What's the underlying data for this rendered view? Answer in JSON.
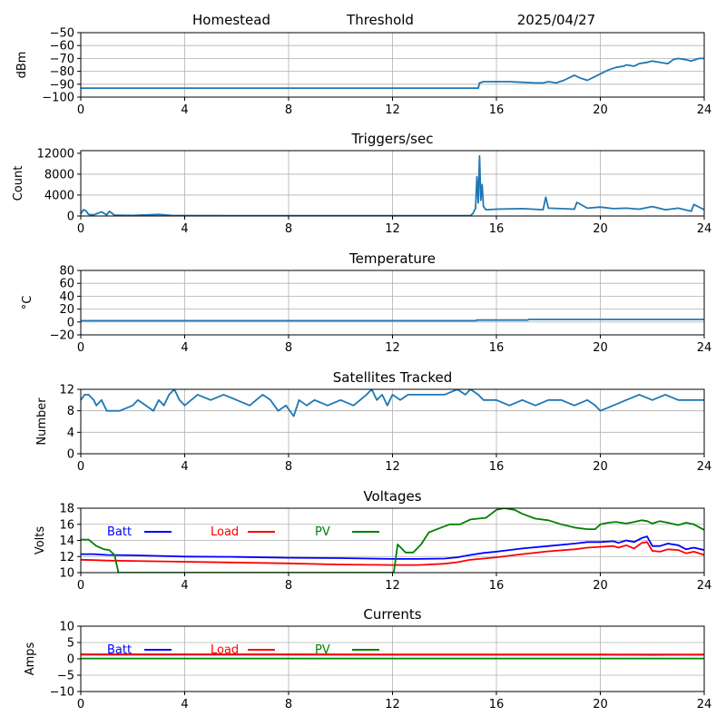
{
  "header": {
    "site": "Homestead",
    "mode": "Threshold",
    "date": "2025/04/27"
  },
  "colors": {
    "default_series": "#1f77b4",
    "batt": "#0000ff",
    "load": "#ff0000",
    "pv": "#008000",
    "grid": "#b0b0b0"
  },
  "chart_data": [
    {
      "id": "signal",
      "type": "line",
      "title": "",
      "ylabel": "dBm",
      "xlim": [
        0,
        24
      ],
      "ylim": [
        -100,
        -50
      ],
      "xticks": [
        0,
        4,
        8,
        12,
        16,
        20,
        24
      ],
      "yticks": [
        -100,
        -90,
        -80,
        -70,
        -60,
        -50
      ],
      "grid": true,
      "series": [
        {
          "color": "#1f77b4",
          "x": [
            0,
            15.3,
            15.35,
            15.5,
            16.0,
            16.5,
            17.0,
            17.5,
            17.8,
            18.0,
            18.3,
            18.6,
            18.8,
            19.0,
            19.2,
            19.5,
            19.8,
            20.0,
            20.3,
            20.6,
            20.9,
            21.0,
            21.3,
            21.5,
            21.8,
            22.0,
            22.3,
            22.6,
            22.8,
            23.0,
            23.3,
            23.5,
            23.8,
            24.0
          ],
          "y": [
            -93,
            -93,
            -89,
            -88,
            -88,
            -88,
            -88.5,
            -89,
            -89,
            -88,
            -89,
            -87,
            -85,
            -83,
            -85,
            -87,
            -84,
            -82,
            -79,
            -77,
            -76,
            -75,
            -76,
            -74,
            -73,
            -72,
            -73,
            -74,
            -71,
            -70,
            -71,
            -72,
            -70,
            -70
          ]
        }
      ]
    },
    {
      "id": "triggers",
      "type": "line",
      "title": "Triggers/sec",
      "ylabel": "Count",
      "xlim": [
        0,
        24
      ],
      "ylim": [
        0,
        12500
      ],
      "xticks": [
        0,
        4,
        8,
        12,
        16,
        20,
        24
      ],
      "yticks": [
        0,
        4000,
        8000,
        12000
      ],
      "grid": true,
      "series": [
        {
          "color": "#1f77b4",
          "x": [
            0,
            0.1,
            0.2,
            0.3,
            0.5,
            0.8,
            1.0,
            1.1,
            1.3,
            2.0,
            3.0,
            3.5,
            4.0,
            8.0,
            12.0,
            15.0,
            15.1,
            15.2,
            15.25,
            15.3,
            15.35,
            15.4,
            15.45,
            15.5,
            15.6,
            16.0,
            17.0,
            17.8,
            17.9,
            18.0,
            18.5,
            19.0,
            19.1,
            19.5,
            20.0,
            20.5,
            21.0,
            21.5,
            22.0,
            22.5,
            23.0,
            23.5,
            23.6,
            24.0
          ],
          "y": [
            400,
            1200,
            1000,
            300,
            200,
            800,
            200,
            900,
            150,
            100,
            300,
            100,
            80,
            50,
            50,
            60,
            500,
            1500,
            7500,
            2500,
            11500,
            3000,
            6000,
            1800,
            1200,
            1300,
            1400,
            1200,
            3600,
            1500,
            1400,
            1300,
            2600,
            1500,
            1700,
            1400,
            1500,
            1300,
            1800,
            1200,
            1500,
            900,
            2200,
            1200
          ]
        }
      ]
    },
    {
      "id": "temperature",
      "type": "line",
      "title": "Temperature",
      "ylabel": "°C",
      "xlim": [
        0,
        24
      ],
      "ylim": [
        -20,
        80
      ],
      "xticks": [
        0,
        4,
        8,
        12,
        16,
        20,
        24
      ],
      "yticks": [
        -20,
        0,
        20,
        40,
        60,
        80
      ],
      "grid": true,
      "series": [
        {
          "color": "#1f77b4",
          "x": [
            0,
            15.2,
            15.25,
            17.2,
            17.25,
            24
          ],
          "y": [
            2,
            2,
            3,
            3,
            4,
            4
          ]
        }
      ]
    },
    {
      "id": "satellites",
      "type": "line",
      "title": "Satellites Tracked",
      "ylabel": "Number",
      "xlim": [
        0,
        24
      ],
      "ylim": [
        0,
        12
      ],
      "xticks": [
        0,
        4,
        8,
        12,
        16,
        20,
        24
      ],
      "yticks": [
        0,
        4,
        8,
        12
      ],
      "grid": true,
      "series": [
        {
          "color": "#1f77b4",
          "x": [
            0,
            0.15,
            0.3,
            0.5,
            0.6,
            0.8,
            1.0,
            1.5,
            2.0,
            2.2,
            2.5,
            2.8,
            3.0,
            3.2,
            3.4,
            3.6,
            3.8,
            4.0,
            4.5,
            5.0,
            5.5,
            6.0,
            6.5,
            7.0,
            7.3,
            7.6,
            7.9,
            8.2,
            8.4,
            8.7,
            9.0,
            9.5,
            10.0,
            10.5,
            11.0,
            11.2,
            11.4,
            11.6,
            11.8,
            12.0,
            12.3,
            12.6,
            13.0,
            14.0,
            14.5,
            14.8,
            15.0,
            15.3,
            15.5,
            16.0,
            16.5,
            17.0,
            17.5,
            18.0,
            18.5,
            19.0,
            19.5,
            19.8,
            20.0,
            20.5,
            21.0,
            21.5,
            22.0,
            22.5,
            23.0,
            23.5,
            24.0
          ],
          "y": [
            10,
            11,
            11,
            10,
            9,
            10,
            8,
            8,
            9,
            10,
            9,
            8,
            10,
            9,
            11,
            12,
            10,
            9,
            11,
            10,
            11,
            10,
            9,
            11,
            10,
            8,
            9,
            7,
            10,
            9,
            10,
            9,
            10,
            9,
            11,
            12,
            10,
            11,
            9,
            11,
            10,
            11,
            11,
            11,
            12,
            11,
            12,
            11,
            10,
            10,
            9,
            10,
            9,
            10,
            10,
            9,
            10,
            9,
            8,
            9,
            10,
            11,
            10,
            11,
            10,
            10,
            10
          ]
        }
      ]
    },
    {
      "id": "voltages",
      "type": "line",
      "title": "Voltages",
      "ylabel": "Volts",
      "xlim": [
        0,
        24
      ],
      "ylim": [
        10,
        18
      ],
      "xticks": [
        0,
        4,
        8,
        12,
        16,
        20,
        24
      ],
      "yticks": [
        10,
        12,
        14,
        16,
        18
      ],
      "grid": true,
      "legend": [
        "Batt",
        "Load",
        "PV"
      ],
      "series": [
        {
          "name": "Batt",
          "color": "#0000ff",
          "x": [
            0,
            0.5,
            1.0,
            2.0,
            4.0,
            6.0,
            8.0,
            10.0,
            12.0,
            13.0,
            14.0,
            14.5,
            15.0,
            15.5,
            16.0,
            17.0,
            18.0,
            19.0,
            19.5,
            20.0,
            20.5,
            20.7,
            21.0,
            21.3,
            21.6,
            21.8,
            22.0,
            22.3,
            22.6,
            23.0,
            23.3,
            23.6,
            24.0
          ],
          "y": [
            12.3,
            12.3,
            12.2,
            12.15,
            12.0,
            11.95,
            11.85,
            11.8,
            11.7,
            11.7,
            11.75,
            11.9,
            12.2,
            12.45,
            12.6,
            13.0,
            13.3,
            13.6,
            13.8,
            13.8,
            13.9,
            13.7,
            14.0,
            13.8,
            14.3,
            14.5,
            13.3,
            13.3,
            13.6,
            13.4,
            12.9,
            13.1,
            12.8
          ]
        },
        {
          "name": "Load",
          "color": "#ff0000",
          "x": [
            0,
            0.5,
            1.0,
            2.0,
            4.0,
            6.0,
            8.0,
            10.0,
            12.0,
            13.0,
            14.0,
            14.5,
            15.0,
            15.5,
            16.0,
            17.0,
            18.0,
            19.0,
            19.5,
            20.0,
            20.5,
            20.7,
            21.0,
            21.3,
            21.6,
            21.8,
            22.0,
            22.3,
            22.6,
            23.0,
            23.3,
            23.6,
            24.0
          ],
          "y": [
            11.6,
            11.55,
            11.5,
            11.45,
            11.35,
            11.25,
            11.15,
            11.0,
            10.95,
            10.95,
            11.1,
            11.3,
            11.6,
            11.75,
            11.9,
            12.3,
            12.65,
            12.9,
            13.1,
            13.2,
            13.3,
            13.1,
            13.4,
            13.0,
            13.7,
            13.8,
            12.7,
            12.6,
            12.9,
            12.8,
            12.4,
            12.6,
            12.2
          ]
        },
        {
          "name": "PV",
          "color": "#008000",
          "x": [
            0,
            0.3,
            0.6,
            0.9,
            1.1,
            1.3,
            1.45,
            12.05,
            12.2,
            12.5,
            12.8,
            13.1,
            13.4,
            13.8,
            14.2,
            14.6,
            15.0,
            15.3,
            15.6,
            16.0,
            16.3,
            16.7,
            17.0,
            17.5,
            18.0,
            18.5,
            19.0,
            19.5,
            19.8,
            20.0,
            20.3,
            20.6,
            21.0,
            21.3,
            21.6,
            21.8,
            22.0,
            22.3,
            22.6,
            23.0,
            23.3,
            23.6,
            24.0
          ],
          "y": [
            14.1,
            14.1,
            13.3,
            12.9,
            12.8,
            12.2,
            10.0,
            10.0,
            13.5,
            12.5,
            12.5,
            13.5,
            15.0,
            15.5,
            16.0,
            16.0,
            16.6,
            16.7,
            16.8,
            17.8,
            18.0,
            17.8,
            17.3,
            16.7,
            16.5,
            16.0,
            15.6,
            15.4,
            15.4,
            16.0,
            16.2,
            16.3,
            16.1,
            16.3,
            16.5,
            16.4,
            16.1,
            16.4,
            16.2,
            15.9,
            16.2,
            16.0,
            15.3
          ]
        }
      ]
    },
    {
      "id": "currents",
      "type": "line",
      "title": "Currents",
      "ylabel": "Amps",
      "xlim": [
        0,
        24
      ],
      "ylim": [
        -10,
        10
      ],
      "xticks": [
        0,
        4,
        8,
        12,
        16,
        20,
        24
      ],
      "yticks": [
        -10,
        -5,
        0,
        5,
        10
      ],
      "grid": true,
      "legend": [
        "Batt",
        "Load",
        "PV"
      ],
      "series": [
        {
          "name": "Batt",
          "color": "#0000ff",
          "x": [
            0,
            24
          ],
          "y": [
            1.3,
            1.3
          ]
        },
        {
          "name": "Load",
          "color": "#ff0000",
          "x": [
            0,
            4,
            8,
            12,
            16,
            20,
            22,
            24
          ],
          "y": [
            1.4,
            1.4,
            1.4,
            1.3,
            1.3,
            1.3,
            1.2,
            1.3
          ]
        },
        {
          "name": "PV",
          "color": "#008000",
          "x": [
            0,
            24
          ],
          "y": [
            0.1,
            0.1
          ]
        }
      ]
    }
  ]
}
